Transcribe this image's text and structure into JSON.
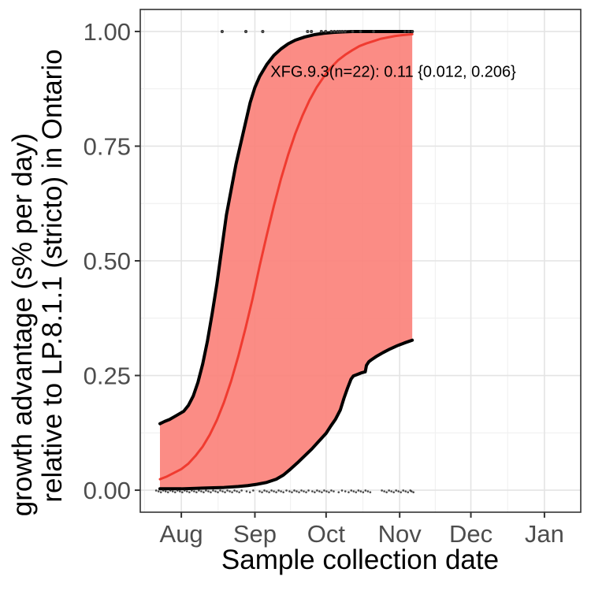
{
  "chart_data": {
    "type": "area",
    "description": "Logistic growth-advantage fit with 95% confidence band for variant XFG.9.3 versus LP.8.1.1 in Ontario; binary observations jittered at 0 and 1",
    "x_axis": {
      "label": "Sample collection date",
      "tick_labels": [
        "Aug",
        "Sep",
        "Oct",
        "Nov",
        "Dec",
        "Jan"
      ],
      "tick_days": [
        0,
        31,
        61,
        92,
        122,
        153
      ],
      "minor_days": [
        -15.5,
        15.5,
        46,
        76.5,
        107,
        137.5
      ],
      "domain_days": [
        -17.3,
        168.3
      ],
      "unit": "days since Aug 1"
    },
    "y_axis": {
      "label_line1": "growth advantage (s% per day)",
      "label_line2": "relative to LP.8.1.1 (stricto) in Ontario",
      "tick_labels": [
        "0.00",
        "0.25",
        "0.50",
        "0.75",
        "1.00"
      ],
      "tick_values": [
        0,
        0.25,
        0.5,
        0.75,
        1.0
      ],
      "minor_values": [
        0.125,
        0.375,
        0.625,
        0.875
      ],
      "domain": [
        -0.048,
        1.048
      ]
    },
    "annotation": {
      "text": "XFG.9.3(n=22): 0.11 {0.012, 0.206}",
      "x_day": 89.3,
      "y_value": 0.911
    },
    "estimate": {
      "variant": "XFG.9.3",
      "n": 22,
      "value": 0.11,
      "ci_low": 0.012,
      "ci_high": 0.206
    },
    "series": [
      {
        "name": "upper_ci",
        "type": "line",
        "color": "#000000",
        "width": 4,
        "points": [
          [
            -9,
            0.145
          ],
          [
            -7,
            0.15
          ],
          [
            -5,
            0.154
          ],
          [
            -3,
            0.16
          ],
          [
            -1,
            0.166
          ],
          [
            1,
            0.172
          ],
          [
            3,
            0.185
          ],
          [
            5,
            0.205
          ],
          [
            7,
            0.235
          ],
          [
            9,
            0.275
          ],
          [
            11,
            0.325
          ],
          [
            13,
            0.385
          ],
          [
            15,
            0.45
          ],
          [
            17,
            0.525
          ],
          [
            19,
            0.6
          ],
          [
            21,
            0.655
          ],
          [
            23,
            0.71
          ],
          [
            25,
            0.755
          ],
          [
            27,
            0.8
          ],
          [
            29,
            0.845
          ],
          [
            31,
            0.878
          ],
          [
            33,
            0.902
          ],
          [
            36,
            0.928
          ],
          [
            39,
            0.948
          ],
          [
            42,
            0.962
          ],
          [
            45,
            0.973
          ],
          [
            48,
            0.981
          ],
          [
            52,
            0.988
          ],
          [
            56,
            0.993
          ],
          [
            60,
            0.996
          ],
          [
            64,
            0.998
          ],
          [
            68,
            0.999
          ],
          [
            72,
            1.0
          ],
          [
            97.3,
            1.0
          ]
        ]
      },
      {
        "name": "median",
        "type": "line",
        "color": "#f03b30",
        "width": 3,
        "points": [
          [
            -9,
            0.024
          ],
          [
            -6,
            0.03
          ],
          [
            -3,
            0.038
          ],
          [
            0,
            0.046
          ],
          [
            3,
            0.058
          ],
          [
            6,
            0.075
          ],
          [
            9,
            0.095
          ],
          [
            12,
            0.121
          ],
          [
            15,
            0.153
          ],
          [
            18,
            0.192
          ],
          [
            21,
            0.238
          ],
          [
            24,
            0.292
          ],
          [
            27,
            0.352
          ],
          [
            30,
            0.417
          ],
          [
            33,
            0.489
          ],
          [
            36,
            0.556
          ],
          [
            39,
            0.62
          ],
          [
            42,
            0.679
          ],
          [
            45,
            0.731
          ],
          [
            48,
            0.777
          ],
          [
            51,
            0.816
          ],
          [
            54,
            0.85
          ],
          [
            57,
            0.878
          ],
          [
            60,
            0.901
          ],
          [
            63,
            0.921
          ],
          [
            66,
            0.937
          ],
          [
            69,
            0.949
          ],
          [
            72,
            0.959
          ],
          [
            75,
            0.968
          ],
          [
            78,
            0.974
          ],
          [
            81,
            0.979
          ],
          [
            84,
            0.984
          ],
          [
            87,
            0.987
          ],
          [
            90,
            0.99
          ],
          [
            93,
            0.992
          ],
          [
            97.3,
            0.994
          ]
        ]
      },
      {
        "name": "lower_ci",
        "type": "line",
        "color": "#000000",
        "width": 4,
        "points": [
          [
            -9,
            0.003
          ],
          [
            0,
            0.003
          ],
          [
            6,
            0.004
          ],
          [
            12,
            0.005
          ],
          [
            18,
            0.006
          ],
          [
            24,
            0.008
          ],
          [
            28,
            0.01
          ],
          [
            32,
            0.013
          ],
          [
            36,
            0.017
          ],
          [
            40,
            0.024
          ],
          [
            43,
            0.033
          ],
          [
            46,
            0.046
          ],
          [
            49,
            0.06
          ],
          [
            52,
            0.075
          ],
          [
            55,
            0.09
          ],
          [
            58,
            0.107
          ],
          [
            61,
            0.124
          ],
          [
            63,
            0.14
          ],
          [
            65,
            0.155
          ],
          [
            67,
            0.175
          ],
          [
            68.5,
            0.2
          ],
          [
            70,
            0.222
          ],
          [
            71.5,
            0.242
          ],
          [
            72.5,
            0.249
          ],
          [
            74,
            0.252
          ],
          [
            76,
            0.256
          ],
          [
            77.5,
            0.258
          ],
          [
            78,
            0.272
          ],
          [
            79,
            0.28
          ],
          [
            80,
            0.284
          ],
          [
            82,
            0.291
          ],
          [
            85,
            0.3
          ],
          [
            88,
            0.308
          ],
          [
            91,
            0.315
          ],
          [
            94,
            0.321
          ],
          [
            97.3,
            0.327
          ]
        ]
      }
    ],
    "band": {
      "fill": "#fb7f78",
      "opacity": 0.9,
      "upper": "upper_ci",
      "lower": "lower_ci",
      "right_edge_day": 97.3
    },
    "scatter": {
      "top": {
        "value": 1.0,
        "days": [
          17.2,
          27.2,
          34.3,
          53.2,
          54.8,
          59,
          60.8,
          63.2,
          64.5,
          65.8,
          66.8,
          67.8,
          69,
          72.2,
          75.5,
          81,
          94.2,
          95.8,
          97.3
        ],
        "color": "#3c3c3c",
        "radius": 1.7
      },
      "bottom": {
        "value": 0.0,
        "runs": [
          [
            -10.6,
            26,
            1
          ],
          [
            27.5,
            31.5,
            1.4
          ],
          [
            33,
            42,
            1
          ],
          [
            43,
            45.6,
            1.3
          ],
          [
            46.6,
            53.8,
            1
          ],
          [
            55.2,
            65,
            1
          ],
          [
            66.3,
            70.6,
            1.4
          ],
          [
            71.6,
            80,
            1
          ],
          [
            84.5,
            96.5,
            1
          ],
          [
            97,
            98,
            0.8
          ]
        ],
        "color": "#1c1c1c",
        "radius": 1.3
      }
    },
    "colors": {
      "grid_major": "#e4e4e4",
      "grid_minor": "#f1f1f1",
      "panel_border": "#333333",
      "tick": "#333333",
      "tick_label": "#4d4d4d",
      "axis_title": "#000000",
      "background": "#ffffff"
    },
    "legend": {
      "visible": false
    }
  }
}
